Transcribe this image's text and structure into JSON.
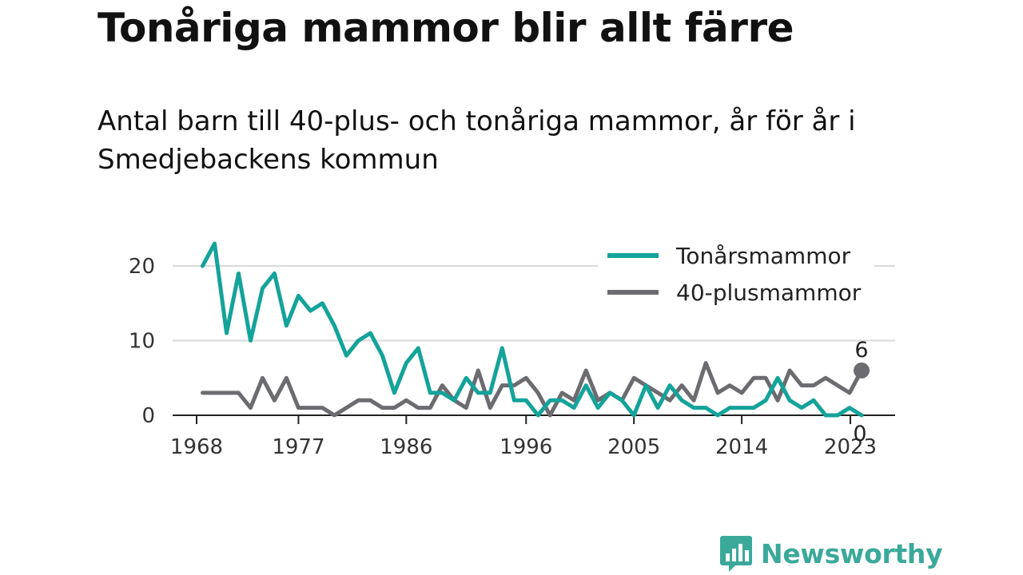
{
  "title": "Tonåriga mammor blir allt färre",
  "subtitle": "Antal barn till 40-plus- och tonåriga mammor, år för år i Smedjebackens kommun",
  "brand": {
    "name": "Newsworthy",
    "icon": "bar-chart-speech-bubble-icon",
    "color": "#3aa99a"
  },
  "chart_data": {
    "type": "line",
    "x_ticks": [
      "1968",
      "1977",
      "1986",
      "1996",
      "2005",
      "2014",
      "2023"
    ],
    "y_ticks": [
      "0",
      "10",
      "20"
    ],
    "ylim": [
      0,
      24
    ],
    "xlim": [
      1968,
      2024
    ],
    "grid": true,
    "legend_position": "top-right",
    "series": [
      {
        "name": "Tonårsmammor",
        "color": "#14a39a",
        "x": [
          1969,
          1970,
          1971,
          1972,
          1973,
          1974,
          1975,
          1976,
          1977,
          1978,
          1979,
          1980,
          1981,
          1982,
          1983,
          1984,
          1985,
          1986,
          1987,
          1988,
          1989,
          1990,
          1991,
          1992,
          1993,
          1994,
          1995,
          1996,
          1997,
          1998,
          1999,
          2000,
          2001,
          2002,
          2003,
          2004,
          2005,
          2006,
          2007,
          2008,
          2009,
          2010,
          2011,
          2012,
          2013,
          2014,
          2015,
          2016,
          2017,
          2018,
          2019,
          2020,
          2021,
          2022,
          2023,
          2024
        ],
        "values": [
          20,
          23,
          11,
          19,
          10,
          17,
          19,
          12,
          16,
          14,
          15,
          12,
          8,
          10,
          11,
          8,
          3,
          7,
          9,
          3,
          3,
          2,
          5,
          3,
          3,
          9,
          2,
          2,
          0,
          2,
          2,
          1,
          4,
          1,
          3,
          2,
          0,
          4,
          1,
          4,
          2,
          1,
          1,
          0,
          1,
          1,
          1,
          2,
          5,
          2,
          1,
          2,
          0,
          0,
          1,
          0
        ],
        "end_label": "0"
      },
      {
        "name": "40-plusmammor",
        "color": "#6b6b70",
        "x": [
          1969,
          1970,
          1971,
          1972,
          1973,
          1974,
          1975,
          1976,
          1977,
          1978,
          1979,
          1980,
          1981,
          1982,
          1983,
          1984,
          1985,
          1986,
          1987,
          1988,
          1989,
          1990,
          1991,
          1992,
          1993,
          1994,
          1995,
          1996,
          1997,
          1998,
          1999,
          2000,
          2001,
          2002,
          2003,
          2004,
          2005,
          2006,
          2007,
          2008,
          2009,
          2010,
          2011,
          2012,
          2013,
          2014,
          2015,
          2016,
          2017,
          2018,
          2019,
          2020,
          2021,
          2022,
          2023,
          2024
        ],
        "values": [
          3,
          3,
          3,
          3,
          1,
          5,
          2,
          5,
          1,
          1,
          1,
          0,
          1,
          2,
          2,
          1,
          1,
          2,
          1,
          1,
          4,
          2,
          1,
          6,
          1,
          4,
          4,
          5,
          3,
          0,
          3,
          2,
          6,
          2,
          3,
          2,
          5,
          4,
          3,
          2,
          4,
          2,
          7,
          3,
          4,
          3,
          5,
          5,
          2,
          6,
          4,
          4,
          5,
          4,
          3,
          6
        ],
        "end_label": "6"
      }
    ]
  }
}
